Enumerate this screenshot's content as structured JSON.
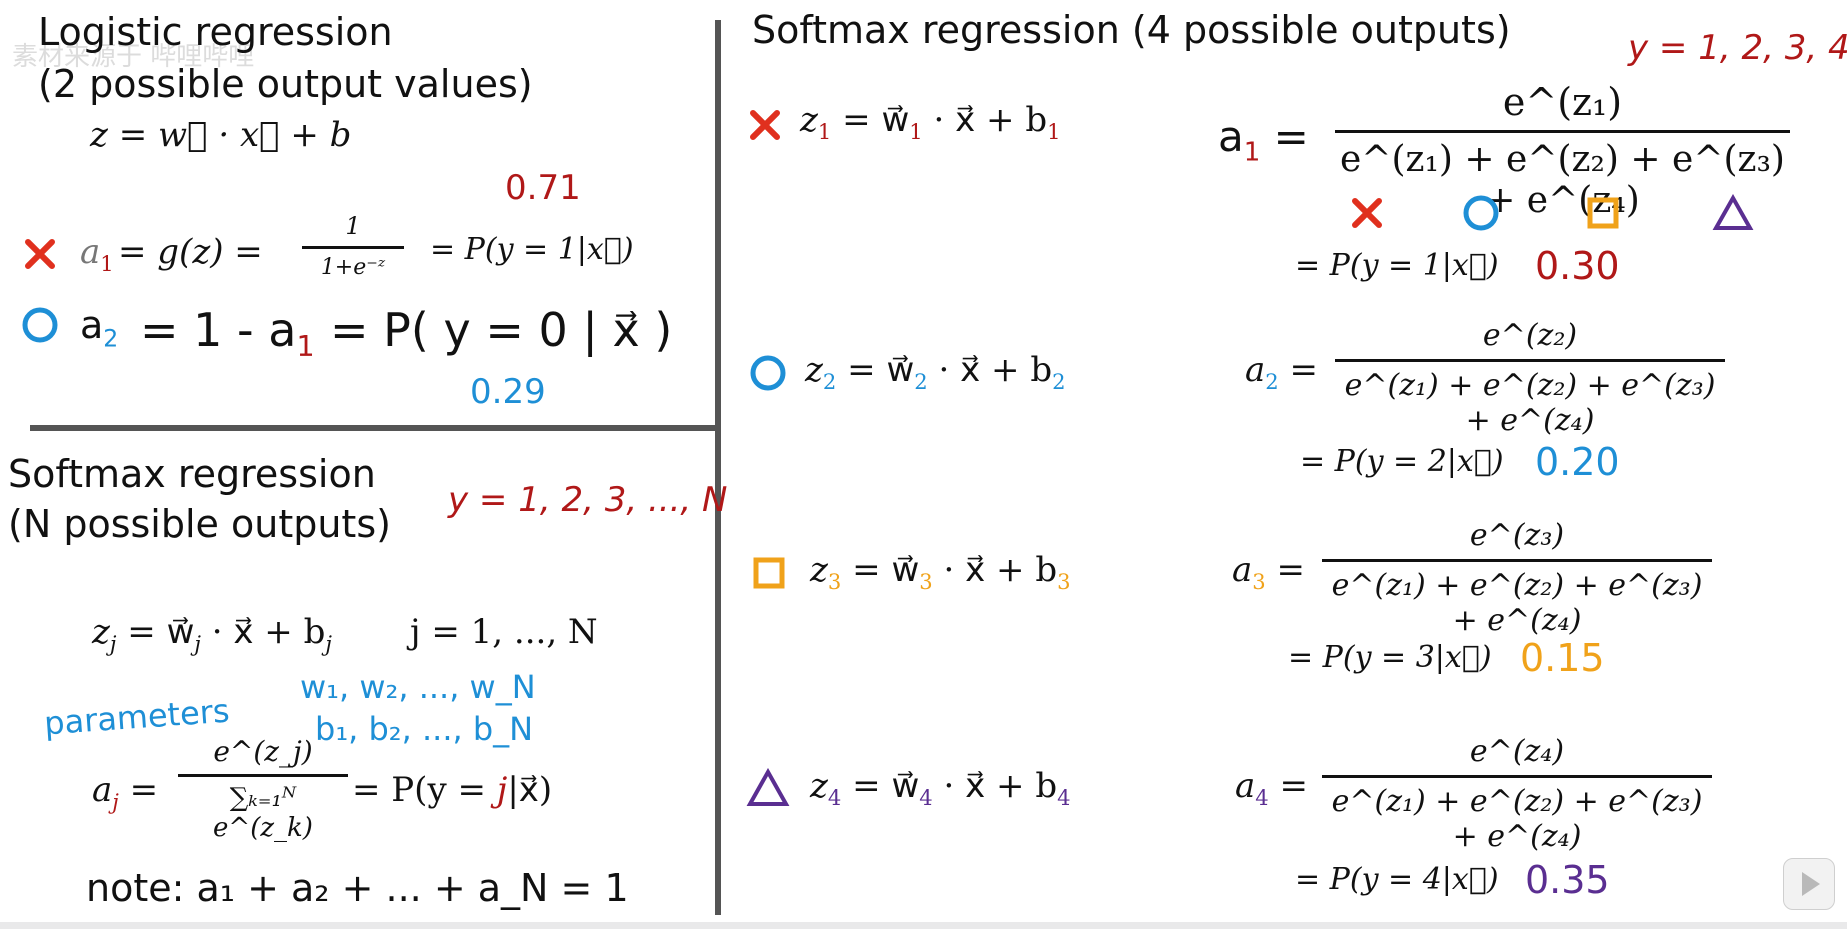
{
  "watermark": "素材来源于 哔哩哔哩",
  "left_top": {
    "title_line1": "Logistic regression",
    "title_line2": "(2 possible output values)",
    "z_eq": "z = w⃗ · x⃗ + b",
    "a1_value": "0.71",
    "a1_lhs": "a",
    "a1_sub": "1",
    "a1_mid": "= g(z) =",
    "a1_frac_num": "1",
    "a1_frac_den": "1+e⁻ᶻ",
    "a1_rhs": "= P(y = 1|x⃗)",
    "a2_lhs": "a",
    "a2_sub": "2",
    "a2_mid": "= 1 - a",
    "a2_sub2": "1",
    "a2_rhs": "= P( y = 0 | x⃗ )",
    "a2_value": "0.29"
  },
  "left_bottom": {
    "title_line1": "Softmax regression",
    "title_line2": "(N possible outputs)",
    "y_range": "y = 1, 2, 3, ..., N",
    "zj_eq_left": "z",
    "zj_sub": "j",
    "zj_eq_mid": "= w⃗",
    "zj_eq_rest": "· x⃗ + b",
    "zj_sub2": "j",
    "j_range": "j = 1, ..., N",
    "parameters_label": "parameters",
    "params_w": "w₁, w₂, ..., w_N",
    "params_b": "b₁, b₂, ..., b_N",
    "aj_lhs": "a",
    "aj_sub": "j",
    "aj_num": "e^(z_j)",
    "aj_den": "∑ₖ₌₁ᴺ e^(z_k)",
    "aj_rhs_pre": "= P(y =",
    "aj_rhs_j": "j",
    "aj_rhs_post": "|x⃗)",
    "note": "note:  a₁ + a₂ + ... + a_N = 1"
  },
  "right": {
    "title": "Softmax regression (4 possible outputs)",
    "y_range": "y = 1, 2, 3, 4",
    "rows": [
      {
        "symbol": "×",
        "color": "#e0301e",
        "index": "1",
        "z_left": "z",
        "z_mid": "= w⃗",
        "z_rest": "· x⃗ + b",
        "a_lhs": "a",
        "a_num": "e^(z₁)",
        "prob": "= P(y = 1|x⃗)",
        "value": "0.30"
      },
      {
        "symbol": "○",
        "color": "#1e8fd6",
        "index": "2",
        "z_left": "z",
        "z_mid": "= w⃗",
        "z_rest": "· x⃗ + b",
        "a_lhs": "a",
        "a_num": "e^(z₂)",
        "prob": "= P(y = 2|x⃗)",
        "value": "0.20"
      },
      {
        "symbol": "□",
        "color": "#f0a21a",
        "index": "3",
        "z_left": "z",
        "z_mid": "= w⃗",
        "z_rest": "· x⃗ + b",
        "a_lhs": "a",
        "a_num": "e^(z₃)",
        "prob": "= P(y = 3|x⃗)",
        "value": "0.15"
      },
      {
        "symbol": "△",
        "color": "#5a2e91",
        "index": "4",
        "z_left": "z",
        "z_mid": "= w⃗",
        "z_rest": "· x⃗ + b",
        "a_lhs": "a",
        "a_num": "e^(z₄)",
        "prob": "= P(y = 4|x⃗)",
        "value": "0.35"
      }
    ],
    "denominator": "e^(z₁) + e^(z₂) + e^(z₃) + e^(z₄)",
    "legend_symbols": [
      "×",
      "○",
      "□",
      "△"
    ]
  }
}
